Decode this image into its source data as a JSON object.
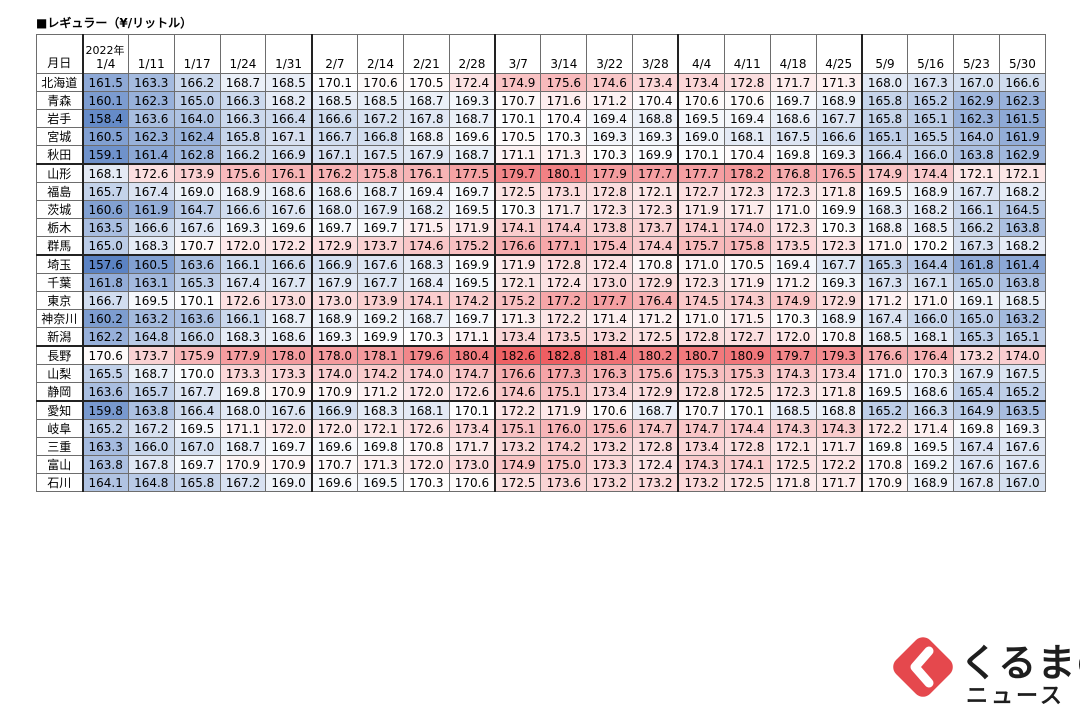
{
  "chart_data": {
    "type": "heatmap",
    "title": "■レギュラー（¥/リットル）",
    "corner_label": "月日",
    "year_label": "2022年",
    "columns": [
      "1/4",
      "1/11",
      "1/17",
      "1/24",
      "1/31",
      "2/7",
      "2/14",
      "2/21",
      "2/28",
      "3/7",
      "3/14",
      "3/22",
      "3/28",
      "4/4",
      "4/11",
      "4/18",
      "4/25",
      "5/9",
      "5/16",
      "5/23",
      "5/30"
    ],
    "rows": [
      {
        "name": "北海道",
        "values": [
          161.5,
          163.3,
          166.2,
          168.7,
          168.5,
          170.1,
          170.6,
          170.5,
          172.4,
          174.9,
          175.6,
          174.6,
          173.4,
          173.4,
          172.8,
          171.7,
          171.3,
          168.0,
          167.3,
          167.0,
          166.6
        ]
      },
      {
        "name": "青森",
        "values": [
          160.1,
          162.3,
          165.0,
          166.3,
          168.2,
          168.5,
          168.5,
          168.7,
          169.3,
          170.7,
          171.6,
          171.2,
          170.4,
          170.6,
          170.6,
          169.7,
          168.9,
          165.8,
          165.2,
          162.9,
          162.3
        ]
      },
      {
        "name": "岩手",
        "values": [
          158.4,
          163.6,
          164.0,
          166.3,
          166.4,
          166.6,
          167.2,
          167.8,
          168.7,
          170.1,
          170.4,
          169.4,
          168.8,
          169.5,
          169.4,
          168.6,
          167.7,
          165.8,
          165.1,
          162.3,
          161.5
        ]
      },
      {
        "name": "宮城",
        "values": [
          160.5,
          162.3,
          162.4,
          165.8,
          167.1,
          166.7,
          166.8,
          168.8,
          169.6,
          170.5,
          170.3,
          169.3,
          169.3,
          169.0,
          168.1,
          167.5,
          166.6,
          165.1,
          165.5,
          164.0,
          161.9
        ]
      },
      {
        "name": "秋田",
        "values": [
          159.1,
          161.4,
          162.8,
          166.2,
          166.9,
          167.1,
          167.5,
          167.9,
          168.7,
          171.1,
          171.3,
          170.3,
          169.9,
          170.1,
          170.4,
          169.8,
          169.3,
          166.4,
          166.0,
          163.8,
          162.9
        ]
      },
      {
        "name": "山形",
        "values": [
          168.1,
          172.6,
          173.9,
          175.6,
          176.1,
          176.2,
          175.8,
          176.1,
          177.5,
          179.7,
          180.1,
          177.9,
          177.7,
          177.7,
          178.2,
          176.8,
          176.5,
          174.9,
          174.4,
          172.1,
          172.1
        ]
      },
      {
        "name": "福島",
        "values": [
          165.7,
          167.4,
          169.0,
          168.9,
          168.6,
          168.6,
          168.7,
          169.4,
          169.7,
          172.5,
          173.1,
          172.8,
          172.1,
          172.7,
          172.3,
          172.3,
          171.8,
          169.5,
          168.9,
          167.7,
          168.2
        ]
      },
      {
        "name": "茨城",
        "values": [
          160.6,
          161.9,
          164.7,
          166.6,
          167.6,
          168.0,
          167.9,
          168.2,
          169.5,
          170.3,
          171.7,
          172.3,
          172.3,
          171.9,
          171.7,
          171.0,
          169.9,
          168.3,
          168.2,
          166.1,
          164.5
        ]
      },
      {
        "name": "栃木",
        "values": [
          163.5,
          166.6,
          167.6,
          169.3,
          169.6,
          169.7,
          169.7,
          171.5,
          171.9,
          174.1,
          174.4,
          173.8,
          173.7,
          174.1,
          174.0,
          172.3,
          170.3,
          168.8,
          168.5,
          166.2,
          163.8
        ]
      },
      {
        "name": "群馬",
        "values": [
          165.0,
          168.3,
          170.7,
          172.0,
          172.2,
          172.9,
          173.7,
          174.6,
          175.2,
          176.6,
          177.1,
          175.4,
          174.4,
          175.7,
          175.8,
          173.5,
          172.3,
          171.0,
          170.2,
          167.3,
          168.2
        ]
      },
      {
        "name": "埼玉",
        "values": [
          157.6,
          160.5,
          163.6,
          166.1,
          166.6,
          166.9,
          167.6,
          168.3,
          169.9,
          171.9,
          172.8,
          172.4,
          170.8,
          171.0,
          170.5,
          169.4,
          167.7,
          165.3,
          164.4,
          161.8,
          161.4
        ]
      },
      {
        "name": "千葉",
        "values": [
          161.8,
          163.1,
          165.3,
          167.4,
          167.7,
          167.9,
          167.7,
          168.4,
          169.5,
          172.1,
          172.4,
          173.0,
          172.9,
          172.3,
          171.9,
          171.2,
          169.3,
          167.3,
          167.1,
          165.0,
          163.8
        ]
      },
      {
        "name": "東京",
        "values": [
          166.7,
          169.5,
          170.1,
          172.6,
          173.0,
          173.0,
          173.9,
          174.1,
          174.2,
          175.2,
          177.2,
          177.7,
          176.4,
          174.5,
          174.3,
          174.9,
          172.9,
          171.2,
          171.0,
          169.1,
          168.5
        ]
      },
      {
        "name": "神奈川",
        "values": [
          160.2,
          163.2,
          163.6,
          166.1,
          168.7,
          168.9,
          169.2,
          168.7,
          169.7,
          171.3,
          172.2,
          171.4,
          171.2,
          171.0,
          171.5,
          170.3,
          168.9,
          167.4,
          166.0,
          165.0,
          163.2
        ]
      },
      {
        "name": "新潟",
        "values": [
          162.2,
          164.8,
          166.0,
          168.3,
          168.6,
          169.3,
          169.9,
          170.3,
          171.1,
          173.4,
          173.5,
          173.2,
          172.5,
          172.8,
          172.7,
          172.0,
          170.8,
          168.5,
          168.1,
          165.3,
          165.1
        ]
      },
      {
        "name": "長野",
        "values": [
          170.6,
          173.7,
          175.9,
          177.9,
          178.0,
          178.0,
          178.1,
          179.6,
          180.4,
          182.6,
          182.8,
          181.4,
          180.2,
          180.7,
          180.9,
          179.7,
          179.3,
          176.6,
          176.4,
          173.2,
          174.0
        ]
      },
      {
        "name": "山梨",
        "values": [
          165.5,
          168.7,
          170.0,
          173.3,
          173.3,
          174.0,
          174.2,
          174.0,
          174.7,
          176.6,
          177.3,
          176.3,
          175.6,
          175.3,
          175.3,
          174.3,
          173.4,
          171.0,
          170.3,
          167.9,
          167.5
        ]
      },
      {
        "name": "静岡",
        "values": [
          163.6,
          165.7,
          167.7,
          169.8,
          170.9,
          170.9,
          171.2,
          172.0,
          172.6,
          174.6,
          175.1,
          173.4,
          172.9,
          172.8,
          172.5,
          172.3,
          171.8,
          169.5,
          168.6,
          165.4,
          165.2
        ]
      },
      {
        "name": "愛知",
        "values": [
          159.8,
          163.8,
          166.4,
          168.0,
          167.6,
          166.9,
          168.3,
          168.1,
          170.1,
          172.2,
          171.9,
          170.6,
          168.7,
          170.7,
          170.1,
          168.5,
          168.8,
          165.2,
          166.3,
          164.9,
          163.5
        ]
      },
      {
        "name": "岐阜",
        "values": [
          165.2,
          167.2,
          169.5,
          171.1,
          172.0,
          172.0,
          172.1,
          172.6,
          173.4,
          175.1,
          176.0,
          175.6,
          174.7,
          174.7,
          174.4,
          174.3,
          174.3,
          172.2,
          171.4,
          169.8,
          169.3
        ]
      },
      {
        "name": "三重",
        "values": [
          163.3,
          166.0,
          167.0,
          168.7,
          169.7,
          169.6,
          169.8,
          170.8,
          171.7,
          173.2,
          174.2,
          173.2,
          172.8,
          173.4,
          172.8,
          172.1,
          171.7,
          169.8,
          169.5,
          167.4,
          167.6
        ]
      },
      {
        "name": "富山",
        "values": [
          163.8,
          167.8,
          169.7,
          170.9,
          170.9,
          170.7,
          171.3,
          172.0,
          173.0,
          174.9,
          175.0,
          173.3,
          172.4,
          174.3,
          174.1,
          172.5,
          172.2,
          170.8,
          169.2,
          167.6,
          167.6
        ]
      },
      {
        "name": "石川",
        "values": [
          164.1,
          164.8,
          165.8,
          167.2,
          169.0,
          169.6,
          169.5,
          170.3,
          170.6,
          172.5,
          173.6,
          173.2,
          173.2,
          173.2,
          172.5,
          171.8,
          171.7,
          170.9,
          168.9,
          167.8,
          167.0
        ]
      }
    ],
    "color_scale": {
      "low": "#5b83c4",
      "mid": "#ffffff",
      "high": "#ee5e62",
      "min": 157.6,
      "mid_value": 170.2,
      "max": 182.8
    }
  },
  "logo": {
    "line1": "くるまの",
    "line2": "ニュース",
    "accent": "#e5484d",
    "arrow_color": "#ffffff"
  }
}
